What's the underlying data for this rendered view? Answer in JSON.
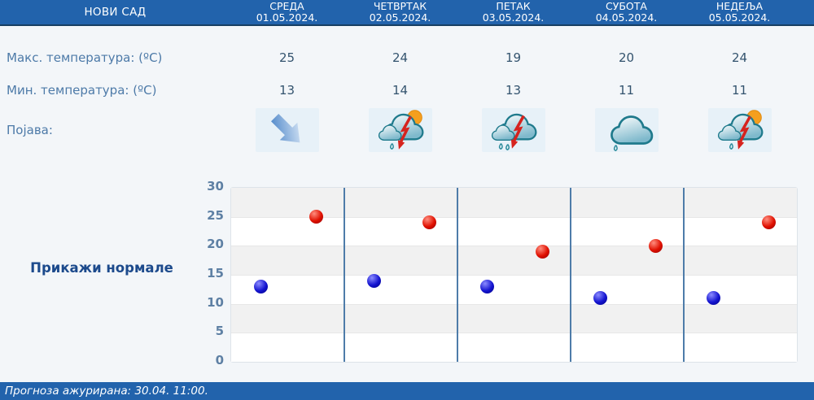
{
  "header": {
    "location": "НОВИ САД",
    "days": [
      {
        "name": "СРЕДА",
        "date": "01.05.2024."
      },
      {
        "name": "ЧЕТВРТАК",
        "date": "02.05.2024."
      },
      {
        "name": "ПЕТАК",
        "date": "03.05.2024."
      },
      {
        "name": "СУБОТА",
        "date": "04.05.2024."
      },
      {
        "name": "НЕДЕЉА",
        "date": "05.05.2024."
      }
    ]
  },
  "rows": {
    "max_label": "Макс. температура: (ºC)",
    "min_label": "Мин. температура: (ºC)",
    "phenomenon_label": "Појава:",
    "max_values": [
      25,
      24,
      19,
      20,
      24
    ],
    "min_values": [
      13,
      14,
      13,
      11,
      11
    ],
    "icons": [
      "arrow-down-right-icon",
      "thunderstorm-sun-icon",
      "thunderstorm-icon",
      "cloudy-icon",
      "thunderstorm-sun-icon"
    ]
  },
  "controls": {
    "show_normals_label": "Прикажи нормале"
  },
  "chart_data": {
    "type": "scatter",
    "categories": [
      "СРЕДА 01.05.2024.",
      "ЧЕТВРТАК 02.05.2024.",
      "ПЕТАК 03.05.2024.",
      "СУБОТА 04.05.2024.",
      "НЕДЕЉА 05.05.2024."
    ],
    "series": [
      {
        "name": "Макс. температура (ºC)",
        "color": "#e01000",
        "marker": "ball",
        "values": [
          25,
          24,
          19,
          20,
          24
        ]
      },
      {
        "name": "Мин. температура (ºC)",
        "color": "#1414d0",
        "marker": "ball",
        "values": [
          13,
          14,
          13,
          11,
          11
        ]
      }
    ],
    "ylim": [
      0,
      30
    ],
    "yticks": [
      0,
      5,
      10,
      15,
      20,
      25,
      30
    ],
    "grid": "horizontal-bands-every-5",
    "band_colors": [
      "#f1f1f1",
      "#ffffff"
    ],
    "column_separator_color": "#4e7ca9",
    "legend": "none",
    "title": ""
  },
  "footer": {
    "updated_text": "Прогноза ажурирана:  30.04. 11:00."
  },
  "colors": {
    "header_bg": "#2263ac",
    "header_border": "#173f63",
    "page_bg": "#f3f6f9",
    "label_text": "#4d7aa8",
    "value_text": "#33536e",
    "icon_box_bg": "#e7f1f8",
    "normals_link": "#1c4a8c",
    "footer_bg": "#2263ac"
  }
}
